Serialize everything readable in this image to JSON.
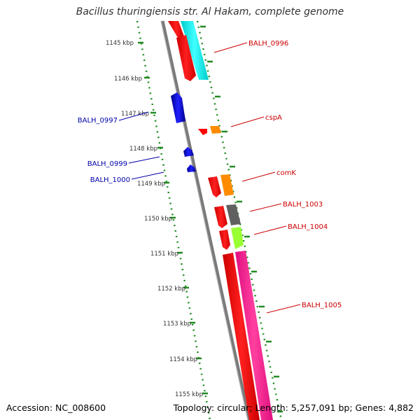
{
  "title": "Bacillus thuringiensis str. Al Hakam, complete genome",
  "footer": {
    "accession": "Accession: NC_008600",
    "summary": "Topology: circular; Length: 5,257,091 bp; Genes: 4,882"
  },
  "ticks": [
    "1145 kbp",
    "1146 kbp",
    "1147 kbp",
    "1148 kbp",
    "1149 kbp",
    "1150 kbp",
    "1151 kbp",
    "1152 kbp",
    "1153 kbp",
    "1154 kbp",
    "1155 kbp"
  ],
  "labels_right": [
    "BALH_0996",
    "cspA",
    "comK",
    "BALH_1003",
    "BALH_1004",
    "BALH_1005"
  ],
  "labels_left": [
    "BALH_0997",
    "BALH_0999",
    "BALH_1000"
  ],
  "colors": {
    "forward_gene": "#ff0000",
    "reverse_gene": "#0000cc",
    "backbone": "#808080",
    "tick_dots": "#228b22",
    "label_right": "#cc0000",
    "label_left": "#0000aa",
    "cyan": "#00e5e5",
    "orange": "#ff8c00",
    "gray_cog": "#606060",
    "lime": "#99ff33",
    "pink": "#ff1493"
  }
}
